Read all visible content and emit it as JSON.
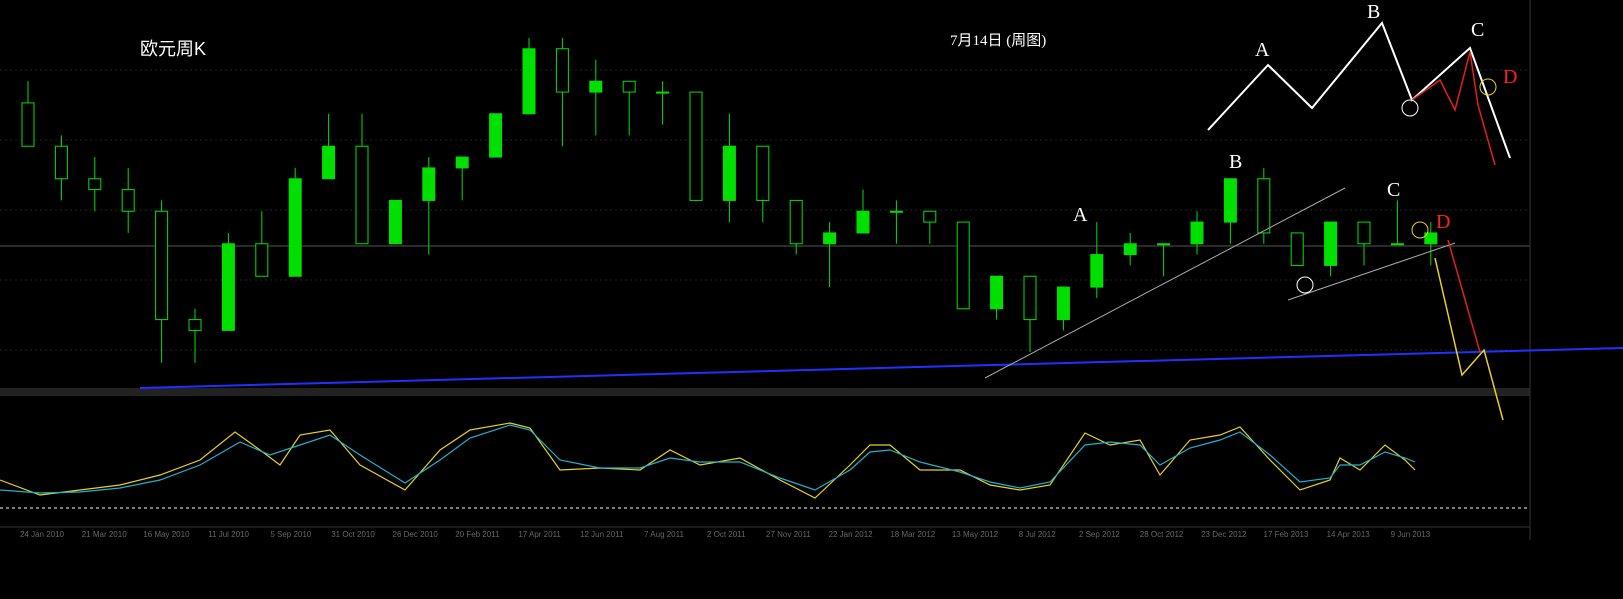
{
  "chart_data": {
    "type": "candlestick",
    "title": "欧元周K",
    "subtitle": "7月14日 (周图)",
    "annotations": [
      "A",
      "B",
      "C",
      "D",
      "A",
      "B",
      "C",
      "D"
    ],
    "xticks": [
      "24 Jan 2010",
      "21 Mar 2010",
      "16 May 2010",
      "11 Jul 2010",
      "5 Sep 2010",
      "31 Oct 2010",
      "26 Dec 2010",
      "20 Feb 2011",
      "17 Apr 2011",
      "12 Jun 2011",
      "7 Aug 2011",
      "2 Oct 2011",
      "27 Nov 2011",
      "22 Jan 2012",
      "18 Mar 2012",
      "13 May 2012",
      "8 Jul 2012",
      "2 Sep 2012",
      "28 Oct 2012",
      "23 Dec 2012",
      "17 Feb 2013",
      "14 Apr 2013",
      "9 Jun 2013"
    ],
    "ylim": [
      1.165,
      1.525
    ],
    "up_color": "#00e000",
    "down_color": "#000000",
    "wick_color": "#00e000",
    "open": [
      1.43,
      1.39,
      1.36,
      1.35,
      1.33,
      1.23,
      1.22,
      1.3,
      1.27,
      1.36,
      1.39,
      1.3,
      1.34,
      1.37,
      1.38,
      1.42,
      1.48,
      1.44,
      1.45,
      1.44,
      1.44,
      1.34,
      1.39,
      1.34,
      1.3,
      1.31,
      1.33,
      1.33,
      1.32,
      1.24,
      1.27,
      1.23,
      1.26,
      1.29,
      1.3,
      1.3,
      1.32,
      1.36,
      1.31,
      1.28,
      1.32,
      1.3,
      1.3
    ],
    "high": [
      1.45,
      1.4,
      1.38,
      1.37,
      1.34,
      1.24,
      1.31,
      1.33,
      1.37,
      1.42,
      1.42,
      1.34,
      1.38,
      1.38,
      1.42,
      1.49,
      1.49,
      1.47,
      1.45,
      1.45,
      1.44,
      1.42,
      1.39,
      1.34,
      1.32,
      1.35,
      1.34,
      1.33,
      1.32,
      1.27,
      1.27,
      1.26,
      1.32,
      1.31,
      1.3,
      1.33,
      1.36,
      1.37,
      1.31,
      1.32,
      1.32,
      1.34,
      1.32
    ],
    "low": [
      1.39,
      1.34,
      1.33,
      1.31,
      1.19,
      1.19,
      1.22,
      1.27,
      1.27,
      1.36,
      1.3,
      1.3,
      1.29,
      1.34,
      1.38,
      1.42,
      1.39,
      1.4,
      1.4,
      1.41,
      1.34,
      1.32,
      1.32,
      1.29,
      1.26,
      1.31,
      1.3,
      1.3,
      1.24,
      1.23,
      1.2,
      1.22,
      1.25,
      1.28,
      1.27,
      1.29,
      1.3,
      1.3,
      1.28,
      1.27,
      1.28,
      1.3,
      1.28
    ],
    "close": [
      1.39,
      1.36,
      1.35,
      1.33,
      1.23,
      1.22,
      1.3,
      1.27,
      1.36,
      1.39,
      1.3,
      1.34,
      1.37,
      1.38,
      1.42,
      1.48,
      1.44,
      1.45,
      1.44,
      1.44,
      1.34,
      1.39,
      1.34,
      1.3,
      1.31,
      1.33,
      1.33,
      1.32,
      1.24,
      1.27,
      1.23,
      1.26,
      1.29,
      1.3,
      1.3,
      1.32,
      1.36,
      1.31,
      1.28,
      1.32,
      1.3,
      1.3,
      1.31
    ]
  }
}
